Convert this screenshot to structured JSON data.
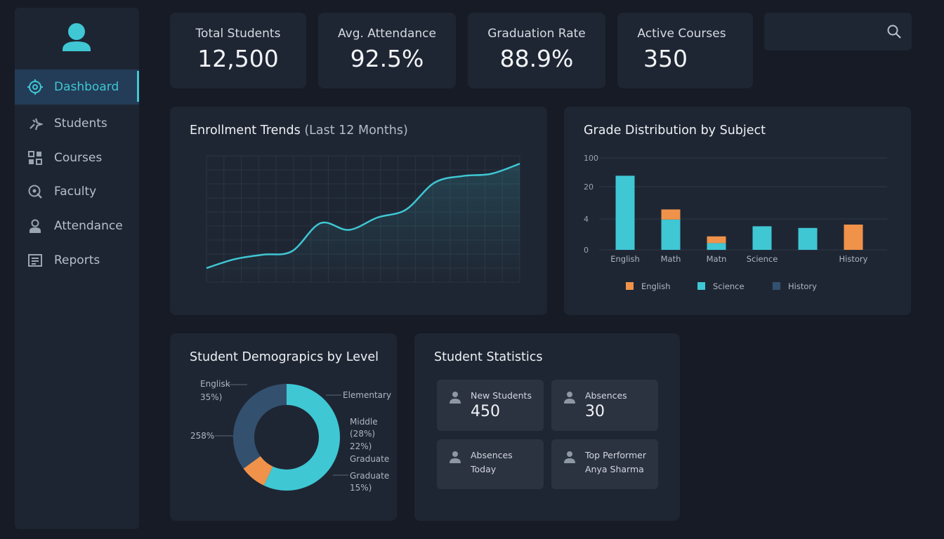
{
  "sidebar": {
    "items": [
      {
        "label": "Dashboard",
        "icon": "dashboard-icon",
        "active": true
      },
      {
        "label": "Students",
        "icon": "students-icon",
        "active": false
      },
      {
        "label": "Courses",
        "icon": "courses-icon",
        "active": false
      },
      {
        "label": "Faculty",
        "icon": "faculty-icon",
        "active": false
      },
      {
        "label": "Attendance",
        "icon": "attendance-icon",
        "active": false
      },
      {
        "label": "Reports",
        "icon": "reports-icon",
        "active": false
      }
    ]
  },
  "stats": [
    {
      "label": "Total Students",
      "value": "12,500"
    },
    {
      "label": "Avg. Attendance",
      "value": "92.5%"
    },
    {
      "label": "Graduation Rate",
      "value": "88.9%"
    },
    {
      "label": "Active Courses",
      "value": "350"
    }
  ],
  "search": {
    "placeholder": "",
    "value": ""
  },
  "enrollment": {
    "title": "Enrollment Trends",
    "subtitle": "(Last 12 Months)"
  },
  "grades": {
    "title": "Grade Distribution by Subject"
  },
  "demographics": {
    "title": "Student Demograpics by Level",
    "labels": {
      "english": "Englisk",
      "english_pct": "35%)",
      "left_pct": "258%",
      "elementary": "Elementary",
      "middle": "Middle",
      "middle_pct1": "(28%)",
      "middle_pct2": "22%)",
      "graduate1": "Graduate",
      "graduate2": "Graduate",
      "graduate_pct": "15%)"
    }
  },
  "statistics": {
    "title": "Student Statistics",
    "cards": [
      {
        "label": "New Students",
        "value": "450"
      },
      {
        "label": "Absences",
        "value": "30"
      },
      {
        "label": "Absences",
        "sub": "Today"
      },
      {
        "label": "Top Performer",
        "sub": "Anya Sharma"
      }
    ]
  },
  "colors": {
    "accent": "#3fc7d4",
    "orange": "#f0924a",
    "navy": "#34506f"
  },
  "chart_data": [
    {
      "type": "line",
      "title": "Enrollment Trends (Last 12 Months)",
      "x": [
        1,
        2,
        3,
        4,
        5,
        6,
        7,
        8,
        9,
        10,
        11,
        12
      ],
      "values": [
        0,
        8,
        12,
        15,
        40,
        34,
        45,
        52,
        76,
        82,
        84,
        93
      ],
      "ylim": [
        0,
        100
      ],
      "grid": true
    },
    {
      "type": "bar",
      "title": "Grade Distribution by Subject",
      "categories": [
        "English",
        "Math",
        "Matn",
        "Science",
        "",
        "History"
      ],
      "ytick_labels": [
        "100",
        "20",
        "4",
        "0"
      ],
      "series": [
        {
          "name": "English",
          "color": "#f0924a",
          "values": [
            0,
            3,
            2,
            0,
            0,
            7.5
          ]
        },
        {
          "name": "Science",
          "color": "#3fc7d4",
          "values": [
            22,
            9,
            2,
            7,
            6.5,
            0
          ]
        },
        {
          "name": "History",
          "color": "#34506f",
          "values": [
            0,
            0,
            0,
            0,
            0,
            0
          ]
        }
      ],
      "legend": "bottom"
    },
    {
      "type": "pie",
      "title": "Student Demograpics by Level",
      "slices": [
        {
          "color": "#3fc7d4",
          "value": 57
        },
        {
          "color": "#f0924a",
          "value": 8
        },
        {
          "color": "#34506f",
          "value": 35
        }
      ]
    }
  ]
}
